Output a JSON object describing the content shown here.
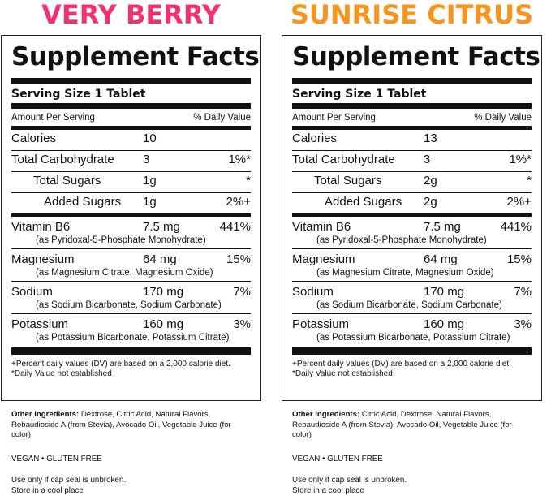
{
  "left": {
    "flavor": "VERY BERRY",
    "flavor_color": "#f0336e",
    "title": "Supplement Facts",
    "serving": "Serving Size 1 Tablet",
    "amount_per_serving": "Amount Per Serving",
    "daily_value": "% Daily Value",
    "calories": {
      "name": "Calories",
      "amount": "10",
      "dv": ""
    },
    "carb": {
      "name": "Total Carbohydrate",
      "amount": "3",
      "dv": "1%*"
    },
    "sugars": {
      "name": "Total Sugars",
      "amount": "1g",
      "dv": "*"
    },
    "added": {
      "name": "Added Sugars",
      "amount": "1g",
      "dv": "2%+"
    },
    "b6": {
      "name": "Vitamin B6",
      "amount": "7.5 mg",
      "dv": "441%",
      "source": "(as Pyridoxal-5-Phosphate Monohydrate)"
    },
    "mg": {
      "name": "Magnesium",
      "amount": "64 mg",
      "dv": "15%",
      "source": "(as Magnesium Citrate, Magnesium Oxide)"
    },
    "na": {
      "name": "Sodium",
      "amount": "170 mg",
      "dv": "7%",
      "source": "(as Sodium Bicarbonate, Sodium Carbonate)"
    },
    "k": {
      "name": "Potassium",
      "amount": "160 mg",
      "dv": "3%",
      "source": "(as Potassium Bicarbonate, Potassium Citrate)"
    },
    "foot1": "+Percent daily values (DV) are based on a 2,000 calorie diet.",
    "foot2": "*Daily Value not established",
    "ingredients_label": "Other Ingredients:",
    "ingredients": " Dextrose, Citric Acid, Natural Flavors, Rebaudioside A (from Stevia), Avocado Oil, Vegetable Juice (for color)",
    "vegan": "VEGAN • GLUTEN FREE",
    "use1": "Use only if cap seal is unbroken.",
    "use2": "Store in a cool place"
  },
  "right": {
    "flavor": "SUNRISE CITRUS",
    "flavor_color": "#f7941d",
    "title": "Supplement Facts",
    "serving": "Serving Size 1 Tablet",
    "amount_per_serving": "Amount Per Serving",
    "daily_value": "% Daily Value",
    "calories": {
      "name": "Calories",
      "amount": "13",
      "dv": ""
    },
    "carb": {
      "name": "Total Carbohydrate",
      "amount": "3",
      "dv": "1%*"
    },
    "sugars": {
      "name": "Total Sugars",
      "amount": "2g",
      "dv": "*"
    },
    "added": {
      "name": "Added Sugars",
      "amount": "2g",
      "dv": "2%+"
    },
    "b6": {
      "name": "Vitamin B6",
      "amount": "7.5 mg",
      "dv": "441%",
      "source": "(as Pyridoxal-5-Phosphate Monohydrate)"
    },
    "mg": {
      "name": "Magnesium",
      "amount": "64 mg",
      "dv": "15%",
      "source": "(as Magnesium Citrate, Magnesium Oxide)"
    },
    "na": {
      "name": "Sodium",
      "amount": "170 mg",
      "dv": "7%",
      "source": "(as Sodium Bicarbonate, Sodium Carbonate)"
    },
    "k": {
      "name": "Potassium",
      "amount": "160 mg",
      "dv": "3%",
      "source": "(as Potassium Bicarbonate, Potassium Citrate)"
    },
    "foot1": "+Percent daily values (DV) are based on a 2,000 calorie diet.",
    "foot2": "*Daily Value not established",
    "ingredients_label": "Other Ingredients:",
    "ingredients": " Citric Acid, Dextrose, Natural Flavors, Rebaudioside A (from Stevia), Avocado Oil, Vegetable Juice (for color)",
    "vegan": "VEGAN • GLUTEN FREE",
    "use1": "Use only if cap seal is unbroken.",
    "use2": "Store in a cool place"
  }
}
